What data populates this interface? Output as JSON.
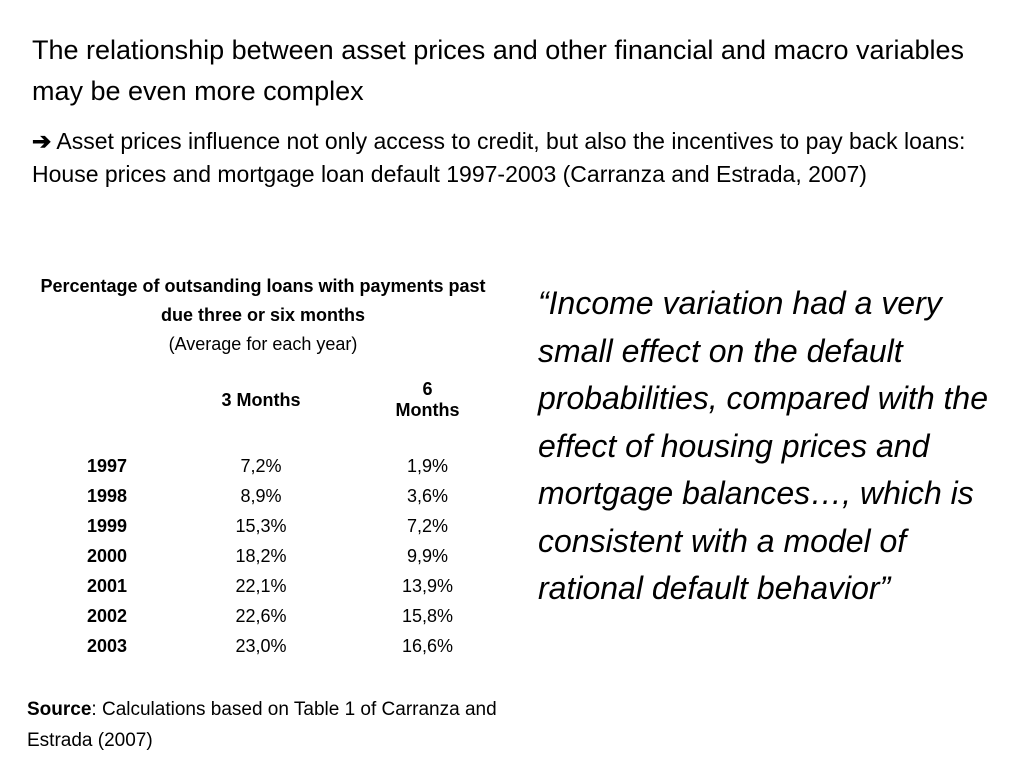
{
  "slide": {
    "title": "The relationship between asset prices and other financial and macro variables may be even more complex",
    "arrow_glyph": "➔",
    "subtitle": " Asset prices influence not only access to credit, but also the incentives to pay back loans: House prices and mortgage loan default 1997-2003 (Carranza and Estrada, 2007)"
  },
  "table": {
    "title": "Percentage of outsanding loans with payments past due three or six months",
    "subtitle": "(Average for each year)",
    "headers": [
      "",
      "3 Months",
      "6 Months"
    ],
    "rows": [
      {
        "year": "1997",
        "m3": "7,2%",
        "m6": "1,9%"
      },
      {
        "year": "1998",
        "m3": "8,9%",
        "m6": "3,6%"
      },
      {
        "year": "1999",
        "m3": "15,3%",
        "m6": "7,2%"
      },
      {
        "year": "2000",
        "m3": "18,2%",
        "m6": "9,9%"
      },
      {
        "year": "2001",
        "m3": "22,1%",
        "m6": "13,9%"
      },
      {
        "year": "2002",
        "m3": "22,6%",
        "m6": "15,8%"
      },
      {
        "year": "2003",
        "m3": "23,0%",
        "m6": "16,6%"
      }
    ]
  },
  "quote": {
    "text": "“Income variation had a very small effect on the default probabilities, compared with the effect of housing prices and mortgage balances…, which is consistent with a model of rational default behavior”"
  },
  "source": {
    "label": "Source",
    "text": ": Calculations based on Table 1 of Carranza and Estrada (2007)"
  }
}
